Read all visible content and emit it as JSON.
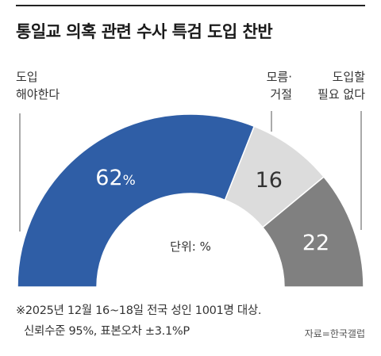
{
  "chart_data": {
    "type": "pie",
    "variant": "half-donut",
    "title": "통일교 의혹 관련 수사 특검 도입 찬반",
    "unit_label": "단위: %",
    "categories": [
      {
        "label_lines": [
          "도입",
          "해야한다"
        ],
        "value": 62,
        "value_text": "62",
        "suffix": "%",
        "color": "#2f5ea6",
        "text_color": "#ffffff"
      },
      {
        "label_lines": [
          "모름·",
          "거절"
        ],
        "value": 16,
        "value_text": "16",
        "suffix": "",
        "color": "#dcdcdc",
        "text_color": "#333333"
      },
      {
        "label_lines": [
          "도입할",
          "필요 없다"
        ],
        "value": 22,
        "value_text": "22",
        "suffix": "",
        "color": "#808080",
        "text_color": "#ffffff"
      }
    ]
  },
  "footnote": {
    "line1": "※2025년 12월 16~18일 전국 성인 1001명 대상.",
    "line2": "신뢰수준 95%, 표본오차 ±3.1%P"
  },
  "source": "자료=한국갤럽"
}
